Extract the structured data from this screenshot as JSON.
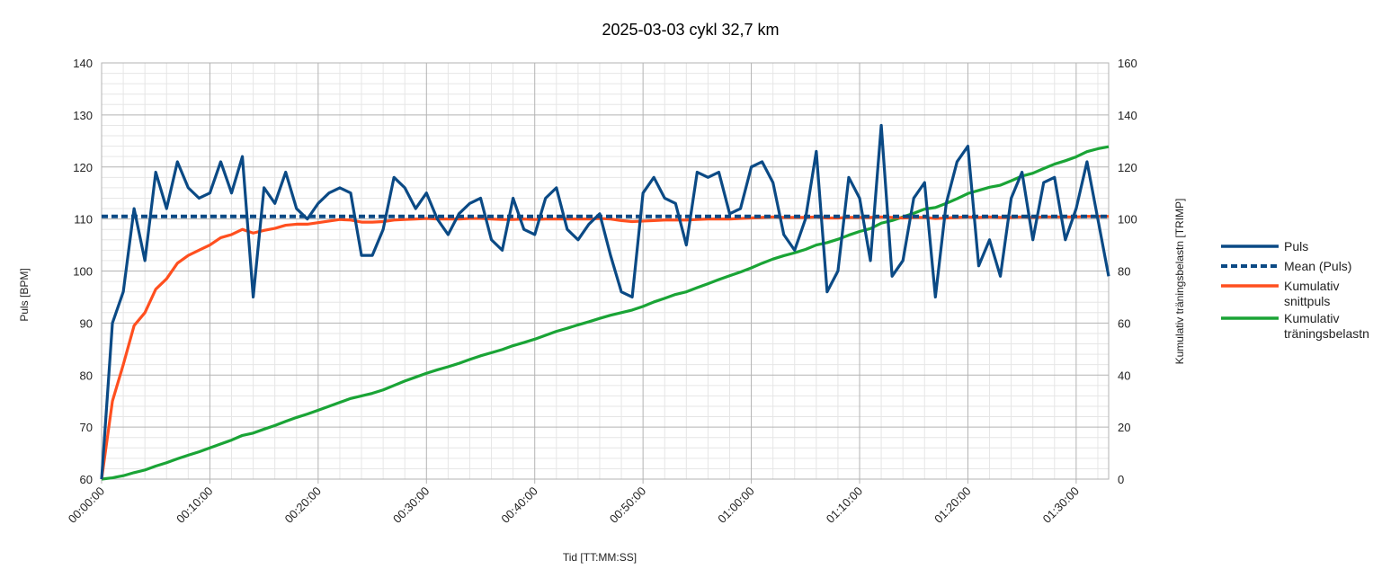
{
  "chart_data": {
    "type": "line",
    "title": "2025-03-03 cykl 32,7 km",
    "xlabel": "Tid [TT:MM:SS]",
    "ylabel": "Puls [BPM]",
    "y2label": "Kumulativ träningsbelastn [TRIMP]",
    "x_unit": "minutes",
    "xlim": [
      0,
      93
    ],
    "ylim": [
      60,
      140
    ],
    "y2lim": [
      0,
      160
    ],
    "x_ticks": [
      {
        "value": 0,
        "label": "00:00:00"
      },
      {
        "value": 10,
        "label": "00:10:00"
      },
      {
        "value": 20,
        "label": "00:20:00"
      },
      {
        "value": 30,
        "label": "00:30:00"
      },
      {
        "value": 40,
        "label": "00:40:00"
      },
      {
        "value": 50,
        "label": "00:50:00"
      },
      {
        "value": 60,
        "label": "01:00:00"
      },
      {
        "value": 70,
        "label": "01:10:00"
      },
      {
        "value": 80,
        "label": "01:20:00"
      },
      {
        "value": 90,
        "label": "01:30:00"
      }
    ],
    "y_ticks": [
      "60",
      "70",
      "80",
      "90",
      "100",
      "110",
      "120",
      "130",
      "140"
    ],
    "y2_ticks": [
      "0",
      "20",
      "40",
      "60",
      "80",
      "100",
      "120",
      "140",
      "160"
    ],
    "grid": true,
    "legend_position": "right",
    "x": [
      0,
      1,
      2,
      3,
      4,
      5,
      6,
      7,
      8,
      9,
      10,
      11,
      12,
      13,
      14,
      15,
      16,
      17,
      18,
      19,
      20,
      21,
      22,
      23,
      24,
      25,
      26,
      27,
      28,
      29,
      30,
      31,
      32,
      33,
      34,
      35,
      36,
      37,
      38,
      39,
      40,
      41,
      42,
      43,
      44,
      45,
      46,
      47,
      48,
      49,
      50,
      51,
      52,
      53,
      54,
      55,
      56,
      57,
      58,
      59,
      60,
      61,
      62,
      63,
      64,
      65,
      66,
      67,
      68,
      69,
      70,
      71,
      72,
      73,
      74,
      75,
      76,
      77,
      78,
      79,
      80,
      81,
      82,
      83,
      84,
      85,
      86,
      87,
      88,
      89,
      90,
      91,
      92,
      93
    ],
    "series": [
      {
        "name": "Puls",
        "axis": "left",
        "color": "#0b4a85",
        "dash": "solid",
        "values": [
          60,
          90,
          96,
          112,
          102,
          119,
          112,
          121,
          116,
          114,
          115,
          121,
          115,
          122,
          95,
          116,
          113,
          119,
          112,
          110,
          113,
          115,
          116,
          115,
          103,
          103,
          108,
          118,
          116,
          112,
          115,
          110,
          107,
          111,
          113,
          114,
          106,
          104,
          114,
          108,
          107,
          114,
          116,
          108,
          106,
          109,
          111,
          103,
          96,
          95,
          115,
          118,
          114,
          113,
          105,
          119,
          118,
          119,
          111,
          112,
          120,
          121,
          117,
          107,
          104,
          110,
          123,
          96,
          100,
          118,
          114,
          102,
          128,
          99,
          102,
          114,
          117,
          95,
          113,
          121,
          124,
          101,
          106,
          99,
          114,
          119,
          106,
          117,
          118,
          106,
          112,
          121,
          110,
          99
        ]
      },
      {
        "name": "Mean (Puls)",
        "axis": "left",
        "color": "#0b4a85",
        "dash": "dashed",
        "values": [
          110.5,
          110.5,
          110.5,
          110.5,
          110.5,
          110.5,
          110.5,
          110.5,
          110.5,
          110.5,
          110.5,
          110.5,
          110.5,
          110.5,
          110.5,
          110.5,
          110.5,
          110.5,
          110.5,
          110.5,
          110.5,
          110.5,
          110.5,
          110.5,
          110.5,
          110.5,
          110.5,
          110.5,
          110.5,
          110.5,
          110.5,
          110.5,
          110.5,
          110.5,
          110.5,
          110.5,
          110.5,
          110.5,
          110.5,
          110.5,
          110.5,
          110.5,
          110.5,
          110.5,
          110.5,
          110.5,
          110.5,
          110.5,
          110.5,
          110.5,
          110.5,
          110.5,
          110.5,
          110.5,
          110.5,
          110.5,
          110.5,
          110.5,
          110.5,
          110.5,
          110.5,
          110.5,
          110.5,
          110.5,
          110.5,
          110.5,
          110.5,
          110.5,
          110.5,
          110.5,
          110.5,
          110.5,
          110.5,
          110.5,
          110.5,
          110.5,
          110.5,
          110.5,
          110.5,
          110.5,
          110.5,
          110.5,
          110.5,
          110.5,
          110.5,
          110.5,
          110.5,
          110.5,
          110.5,
          110.5,
          110.5,
          110.5,
          110.5,
          110.5
        ]
      },
      {
        "name": "Kumulativ snittpuls",
        "axis": "left",
        "color": "#ff4f1f",
        "dash": "solid",
        "values": [
          60,
          75,
          82,
          89.5,
          92,
          96.5,
          98.5,
          101.5,
          103,
          104,
          105,
          106.4,
          107,
          108,
          107.3,
          107.8,
          108.2,
          108.8,
          109,
          109,
          109.3,
          109.6,
          109.9,
          109.8,
          109.4,
          109.4,
          109.5,
          109.8,
          109.9,
          110,
          110.1,
          110,
          110,
          110,
          110.1,
          110.1,
          110,
          109.9,
          109.9,
          110,
          109.9,
          110,
          110,
          110,
          110,
          110,
          110.1,
          110,
          109.7,
          109.5,
          109.6,
          109.7,
          109.8,
          109.8,
          109.8,
          109.9,
          110,
          110,
          110,
          110.1,
          110.2,
          110.3,
          110.4,
          110.3,
          110.3,
          110.3,
          110.4,
          110.2,
          110.2,
          110.3,
          110.3,
          110.3,
          110.4,
          110.3,
          110.2,
          110.3,
          110.3,
          110.1,
          110.2,
          110.3,
          110.4,
          110.3,
          110.4,
          110.3,
          110.3,
          110.4,
          110.3,
          110.4,
          110.4,
          110.4,
          110.4,
          110.5,
          110.5,
          110.5
        ]
      },
      {
        "name": "Kumulativ träningsbelastn",
        "axis": "right",
        "color": "#1aa436",
        "dash": "solid",
        "values": [
          0,
          0.5,
          1.3,
          2.5,
          3.5,
          5,
          6.3,
          7.8,
          9.2,
          10.5,
          12,
          13.5,
          15,
          16.8,
          17.7,
          19.2,
          20.6,
          22.2,
          23.7,
          25,
          26.5,
          28,
          29.5,
          31,
          32,
          33,
          34.3,
          36,
          37.7,
          39.2,
          40.7,
          42,
          43.2,
          44.5,
          46,
          47.4,
          48.6,
          49.8,
          51.3,
          52.5,
          53.8,
          55.3,
          56.8,
          58,
          59.3,
          60.5,
          61.8,
          63,
          64,
          65,
          66.4,
          68.1,
          69.5,
          71,
          72,
          73.6,
          75.1,
          76.7,
          78.2,
          79.6,
          81.2,
          83,
          84.6,
          85.9,
          87,
          88.3,
          90,
          90.9,
          92.2,
          93.8,
          95.2,
          96.3,
          98.4,
          99.4,
          100.8,
          102.2,
          103.8,
          104.4,
          106,
          107.8,
          109.8,
          111,
          112.2,
          113,
          114.7,
          116.5,
          117.6,
          119.4,
          121.1,
          122.4,
          123.9,
          125.9,
          127,
          127.8
        ]
      }
    ]
  }
}
